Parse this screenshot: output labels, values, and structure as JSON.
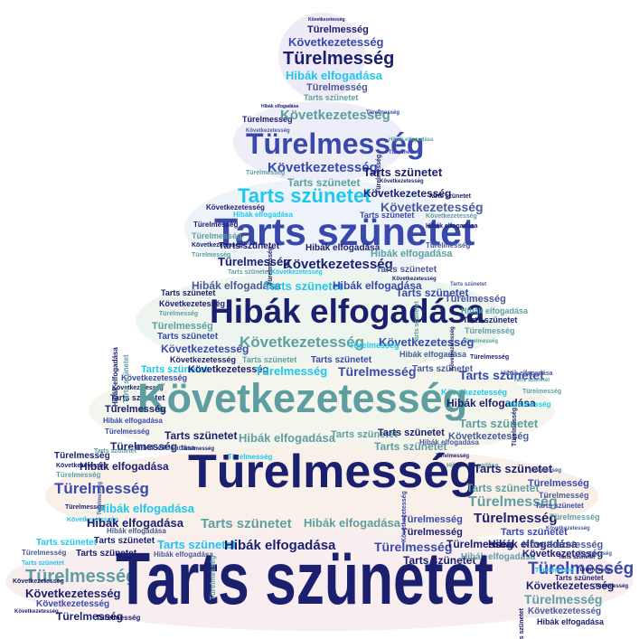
{
  "words": [
    "Türelmesség",
    "Következetesség",
    "Tarts szünetet",
    "Hibák elfogadása"
  ],
  "tiers": [
    {
      "color": "#eeeaf6"
    },
    {
      "color": "#eeeef8"
    },
    {
      "color": "#eef3f9"
    },
    {
      "color": "#eef5ee"
    },
    {
      "color": "#f4f5ec"
    },
    {
      "color": "#faf0ea"
    },
    {
      "color": "#f8eef0"
    }
  ],
  "palette": {
    "navy": "#1a1f6e",
    "royal": "#3949ab",
    "teal": "#5f9ea0",
    "cyan": "#1ec8ec",
    "slate": "#4a5a9a"
  }
}
